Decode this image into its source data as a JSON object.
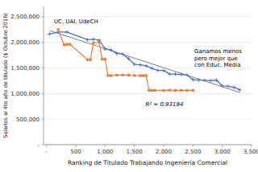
{
  "chart_data": {
    "type": "line",
    "xlabel": "Ranking de Titulado Trabajando Ingeniería Comercial",
    "ylabel": "Salarios al 4to año de titulado ($ Octubre 2016)",
    "xlim": [
      -50,
      3500
    ],
    "ylim": [
      0,
      2700000
    ],
    "xticks": [
      {
        "value": 0,
        "label": "-"
      },
      500,
      {
        "value": 1000,
        "label": "1,000"
      },
      {
        "value": 1500,
        "label": "1,500"
      },
      {
        "value": 2000,
        "label": "2,000"
      },
      {
        "value": 2500,
        "label": "2,500"
      },
      {
        "value": 3000,
        "label": "3,000"
      },
      {
        "value": 3500,
        "label": "3,500"
      }
    ],
    "yticks": [
      {
        "value": 0,
        "label": "-"
      },
      {
        "value": 500000,
        "label": "500,000"
      },
      {
        "value": 1000000,
        "label": "1,000,000"
      },
      {
        "value": 1500000,
        "label": "1,500,000"
      },
      {
        "value": 2000000,
        "label": "2,000,000"
      },
      {
        "value": 2500000,
        "label": "2,500,000"
      }
    ],
    "grid": true,
    "annotations": [
      "UC, UAI, UdeCH",
      "Ganamos menos\npero mejor que\ncon Educ. Media",
      "R² = 0.93194"
    ],
    "series": [
      {
        "color": "#808080",
        "marker": "none",
        "line_style": "solid",
        "x": [
          50,
          3300
        ],
        "values": [
          2230000,
          1020000
        ]
      },
      {
        "color": "#4472C4",
        "marker": "plus",
        "line_style": "solid",
        "x": [
          50,
          200,
          350,
          700,
          800,
          900,
          1000,
          1100,
          1200,
          1300,
          1400,
          1500,
          1600,
          1700,
          1800,
          1900,
          2000,
          2100,
          2200,
          2300,
          2400,
          2500,
          2600,
          2700,
          2800,
          2900,
          3000,
          3100,
          3200,
          3300
        ],
        "values": [
          2160000,
          2200000,
          2200000,
          2050000,
          2060000,
          2040000,
          1870000,
          1850000,
          1780000,
          1770000,
          1680000,
          1570000,
          1560000,
          1540000,
          1490000,
          1450000,
          1450000,
          1380000,
          1380000,
          1370000,
          1360000,
          1270000,
          1260000,
          1260000,
          1250000,
          1260000,
          1150000,
          1140000,
          1120000,
          1070000
        ]
      },
      {
        "color": "#ED7D31",
        "marker": "square",
        "line_style": "solid",
        "x": [
          200,
          300,
          350,
          400,
          700,
          750,
          800,
          900,
          950,
          1000,
          1050,
          1100,
          1200,
          1300,
          1400,
          1500,
          1600,
          1650,
          1700,
          1750,
          1800,
          1850,
          2000,
          2100,
          2200,
          2300,
          2400,
          2500
        ],
        "values": [
          2250000,
          1950000,
          1960000,
          1960000,
          1660000,
          1660000,
          1990000,
          2000000,
          1670000,
          1670000,
          1350000,
          1350000,
          1360000,
          1360000,
          1360000,
          1350000,
          1350000,
          1350000,
          1350000,
          1060000,
          1060000,
          1060000,
          1060000,
          1065000,
          1060000,
          1060000,
          1060000,
          1060000
        ]
      }
    ]
  }
}
